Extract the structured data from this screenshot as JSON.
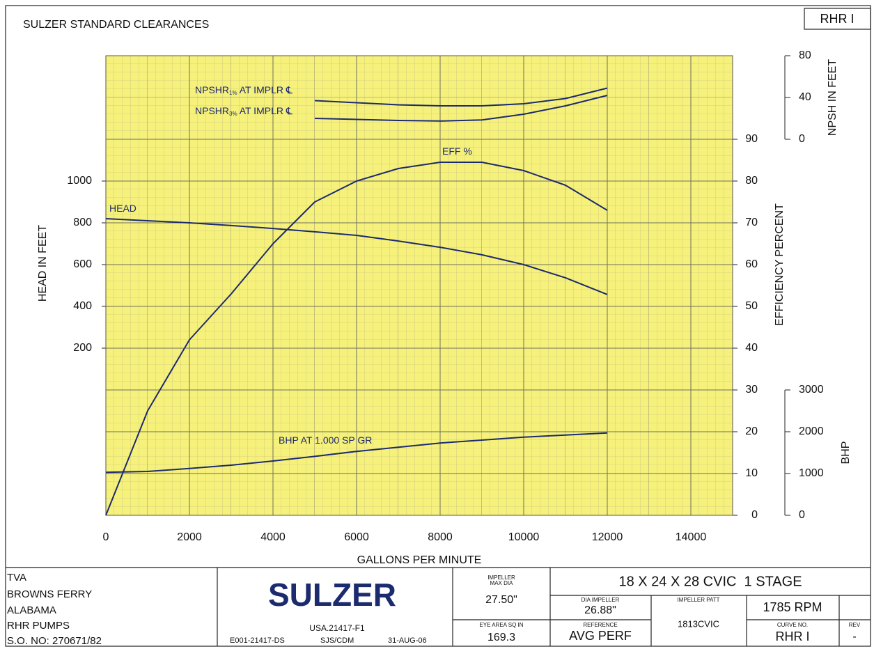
{
  "chart_data": {
    "type": "line",
    "title": "SULZER STANDARD CLEARANCES",
    "corner_label": "RHR I",
    "x_label": "GALLONS PER MINUTE",
    "y_label": "HEAD IN FEET",
    "y2_label": "EFFICIENCY PERCENT",
    "y3_label": "NPSH IN FEET",
    "y4_label": "BHP",
    "x": [
      0,
      1000,
      2000,
      3000,
      4000,
      5000,
      6000,
      7000,
      8000,
      9000,
      10000,
      11000,
      12000
    ],
    "xlim": [
      0,
      15000
    ],
    "xticks": [
      0,
      2000,
      4000,
      6000,
      8000,
      10000,
      12000,
      14000
    ],
    "ylim": [
      -600,
      1600
    ],
    "yticks": [
      200,
      400,
      600,
      800,
      1000
    ],
    "y2lim": [
      0,
      110
    ],
    "y2ticks": [
      0,
      10,
      20,
      30,
      40,
      50,
      60,
      70,
      80,
      90
    ],
    "y3lim": [
      -360,
      80
    ],
    "y3ticks": [
      0,
      40,
      80
    ],
    "y4lim": [
      0,
      11000
    ],
    "y4ticks": [
      0,
      1000,
      2000,
      3000
    ],
    "grid": true,
    "color": "#1c2a6e",
    "series": [
      {
        "name": "HEAD",
        "axis": "y",
        "values": [
          820,
          810,
          800,
          787,
          773,
          757,
          740,
          713,
          683,
          647,
          600,
          537,
          457
        ]
      },
      {
        "name": "EFF %",
        "axis": "y2",
        "values": [
          0,
          25,
          42,
          53,
          65,
          75,
          80,
          83,
          84.5,
          84.5,
          82.5,
          79,
          73
        ]
      },
      {
        "name": "NPSHR",
        "subscript": "1%",
        "suffix": " AT IMPLR ℄",
        "axis": "y3",
        "values": [
          null,
          null,
          null,
          null,
          null,
          37,
          35,
          33,
          32,
          32,
          34,
          39,
          49
        ]
      },
      {
        "name": "NPSHR",
        "subscript": "3%",
        "suffix": " AT IMPLR ℄",
        "axis": "y3",
        "values": [
          null,
          null,
          null,
          null,
          null,
          20,
          19,
          18,
          17.5,
          18.5,
          24,
          32,
          42
        ]
      },
      {
        "name": "BHP AT 1.000 SP GR",
        "axis": "y4",
        "values": [
          1030,
          1050,
          1120,
          1200,
          1300,
          1410,
          1530,
          1630,
          1730,
          1800,
          1870,
          1920,
          1970
        ]
      }
    ]
  },
  "title_block": {
    "customer": [
      "TVA",
      "BROWNS FERRY",
      "ALABAMA",
      "RHR PUMPS",
      "S.O. NO: 270671/82"
    ],
    "logo": "SULZER",
    "drawing_no": "USA.21417-F1",
    "doc_no": "E001-21417-DS",
    "drawn_by": "SJS/CDM",
    "date": "31-AUG-06",
    "max_dia_label": [
      "IMPELLER",
      "MAX DIA"
    ],
    "max_dia": "27.50\"",
    "eye_area_label": "EYE AREA SQ IN",
    "eye_area": "169.3",
    "pump": "18 X 24 X 28 CVIC  1 STAGE",
    "dia_label": "DIA IMPELLER",
    "dia": "26.88\"",
    "patt_label": "IMPELLER PATT",
    "patt": "1813CVIC",
    "speed": "1785 RPM",
    "reference_label": "REFERENCE",
    "reference": "AVG PERF",
    "curve_no_label": "CURVE NO.",
    "curve_no": "RHR I",
    "rev_label": "REV",
    "rev": "-"
  }
}
